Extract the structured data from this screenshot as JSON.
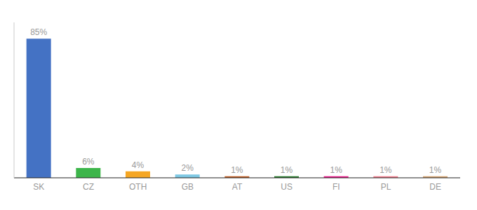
{
  "chart_data": {
    "type": "bar",
    "categories": [
      "SK",
      "CZ",
      "OTH",
      "GB",
      "AT",
      "US",
      "FI",
      "PL",
      "DE"
    ],
    "values": [
      85,
      6,
      4,
      2,
      1,
      1,
      1,
      1,
      1
    ],
    "value_labels": [
      "85%",
      "6%",
      "4%",
      "2%",
      "1%",
      "1%",
      "1%",
      "1%",
      "1%"
    ],
    "colors": [
      "#4472c4",
      "#3cb54a",
      "#f5a623",
      "#7ec8e3",
      "#c0622a",
      "#2e7d32",
      "#e91e8c",
      "#f08090",
      "#d4a574"
    ],
    "ylim": [
      0,
      95
    ],
    "data_labels": true,
    "tick_labels": "x"
  }
}
